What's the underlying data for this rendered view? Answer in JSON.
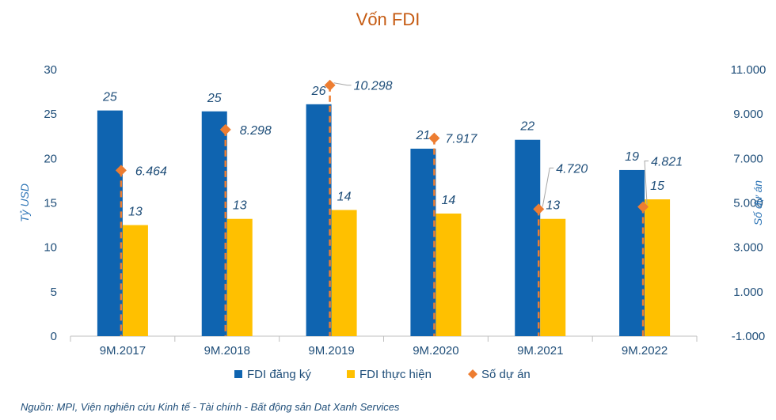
{
  "chart_data": {
    "type": "bar",
    "title": "Vốn FDI",
    "categories": [
      "9M.2017",
      "9M.2018",
      "9M.2019",
      "9M.2020",
      "9M.2021",
      "9M.2022"
    ],
    "series": [
      {
        "name": "FDI đăng ký",
        "kind": "bar",
        "axis": "left",
        "color": "#0f64b0",
        "values": [
          25.4,
          25.3,
          26.1,
          21.1,
          22.1,
          18.7
        ],
        "labels": [
          "25",
          "25",
          "26",
          "21",
          "22",
          "19"
        ]
      },
      {
        "name": "FDI thực hiện",
        "kind": "bar",
        "axis": "left",
        "color": "#ffc000",
        "values": [
          12.5,
          13.2,
          14.2,
          13.8,
          13.2,
          15.4
        ],
        "labels": [
          "13",
          "13",
          "14",
          "14",
          "13",
          "15"
        ]
      },
      {
        "name": "Số dự án",
        "kind": "marker",
        "axis": "right",
        "color": "#ed7d31",
        "values": [
          6464,
          8298,
          10298,
          7917,
          4720,
          4821
        ],
        "labels": [
          "6.464",
          "8.298",
          "10.298",
          "7.917",
          "4.720",
          "4.821"
        ]
      }
    ],
    "ylabel": "Tỷ USD",
    "ylabel_right": "Số dự án",
    "ylim": [
      0,
      30
    ],
    "yticks": [
      0,
      5,
      10,
      15,
      20,
      25,
      30
    ],
    "ylim_right": [
      -1000,
      11000
    ],
    "yticks_right_labels": [
      "-1.000",
      "1.000",
      "3.000",
      "5.000",
      "7.000",
      "9.000",
      "11.000"
    ],
    "grid": false,
    "legend_position": "bottom"
  },
  "source_note": "Nguồn: MPI, Viện nghiên cứu Kinh tế - Tài chính - Bất động sản Dat Xanh Services"
}
